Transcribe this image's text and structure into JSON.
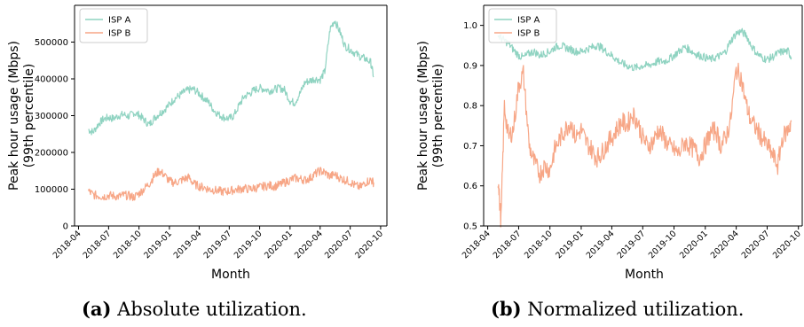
{
  "colors": {
    "isp_a": "#8fd3c1",
    "isp_b": "#f7a686",
    "axis": "#000000"
  },
  "chart_data": [
    {
      "type": "line",
      "xlabel": "Month",
      "ylabel": "Peak hour usage (Mbps)",
      "ylabel2": "(99th percentile)",
      "caption_label": "(a)",
      "caption_text": "Absolute utilization.",
      "legend_position": "top-left",
      "grid": false,
      "xlim": [
        "2018-03-20",
        "2020-10-20"
      ],
      "ylim": [
        0,
        600000
      ],
      "x_ticks": [
        "2018-04",
        "2018-07",
        "2018-10",
        "2019-01",
        "2019-04",
        "2019-07",
        "2019-10",
        "2020-01",
        "2020-04",
        "2020-07",
        "2020-10"
      ],
      "y_ticks": [
        0,
        100000,
        200000,
        300000,
        400000,
        500000
      ],
      "y_tick_labels": [
        "0",
        "100000",
        "200000",
        "300000",
        "400000",
        "500000"
      ],
      "series": [
        {
          "name": "ISP A",
          "x": [
            "2018-05-01",
            "2018-05-15",
            "2018-06-01",
            "2018-06-15",
            "2018-07-01",
            "2018-07-15",
            "2018-08-01",
            "2018-08-15",
            "2018-09-01",
            "2018-09-15",
            "2018-10-01",
            "2018-10-15",
            "2018-11-01",
            "2018-11-15",
            "2018-12-01",
            "2018-12-15",
            "2019-01-01",
            "2019-01-15",
            "2019-02-01",
            "2019-02-15",
            "2019-03-01",
            "2019-03-15",
            "2019-04-01",
            "2019-04-15",
            "2019-05-01",
            "2019-05-15",
            "2019-06-01",
            "2019-06-15",
            "2019-07-01",
            "2019-07-15",
            "2019-08-01",
            "2019-08-15",
            "2019-09-01",
            "2019-09-15",
            "2019-10-01",
            "2019-10-15",
            "2019-11-01",
            "2019-11-15",
            "2019-12-01",
            "2019-12-15",
            "2020-01-01",
            "2020-01-15",
            "2020-02-01",
            "2020-02-15",
            "2020-03-01",
            "2020-03-15",
            "2020-04-01",
            "2020-04-15",
            "2020-05-01",
            "2020-05-15",
            "2020-06-01",
            "2020-06-15",
            "2020-07-01",
            "2020-07-15",
            "2020-08-01",
            "2020-08-15",
            "2020-09-01",
            "2020-09-10"
          ],
          "values": [
            262000,
            255000,
            278000,
            290000,
            295000,
            292000,
            300000,
            303000,
            298000,
            308000,
            302000,
            290000,
            275000,
            292000,
            305000,
            315000,
            330000,
            345000,
            355000,
            365000,
            370000,
            372000,
            360000,
            348000,
            335000,
            315000,
            302000,
            295000,
            292000,
            300000,
            330000,
            352000,
            360000,
            370000,
            375000,
            372000,
            368000,
            372000,
            375000,
            370000,
            340000,
            335000,
            362000,
            390000,
            395000,
            400000,
            398000,
            420000,
            535000,
            560000,
            525000,
            490000,
            480000,
            470000,
            460000,
            455000,
            445000,
            405000
          ]
        },
        {
          "name": "ISP B",
          "x": [
            "2018-05-01",
            "2018-05-15",
            "2018-06-01",
            "2018-06-15",
            "2018-07-01",
            "2018-07-15",
            "2018-08-01",
            "2018-08-15",
            "2018-09-01",
            "2018-09-15",
            "2018-10-01",
            "2018-10-15",
            "2018-11-01",
            "2018-11-15",
            "2018-12-01",
            "2018-12-15",
            "2019-01-01",
            "2019-01-15",
            "2019-02-01",
            "2019-02-15",
            "2019-03-01",
            "2019-03-15",
            "2019-04-01",
            "2019-04-15",
            "2019-05-01",
            "2019-05-15",
            "2019-06-01",
            "2019-06-15",
            "2019-07-01",
            "2019-07-15",
            "2019-08-01",
            "2019-08-15",
            "2019-09-01",
            "2019-09-15",
            "2019-10-01",
            "2019-10-15",
            "2019-11-01",
            "2019-11-15",
            "2019-12-01",
            "2019-12-15",
            "2020-01-01",
            "2020-01-15",
            "2020-02-01",
            "2020-02-15",
            "2020-03-01",
            "2020-03-15",
            "2020-04-01",
            "2020-04-15",
            "2020-05-01",
            "2020-05-15",
            "2020-06-01",
            "2020-06-15",
            "2020-07-01",
            "2020-07-15",
            "2020-08-01",
            "2020-08-15",
            "2020-09-01",
            "2020-09-10"
          ],
          "values": [
            95000,
            85000,
            82000,
            80000,
            83000,
            82000,
            80000,
            84000,
            82000,
            78000,
            88000,
            100000,
            115000,
            135000,
            150000,
            140000,
            122000,
            118000,
            122000,
            128000,
            132000,
            115000,
            108000,
            105000,
            100000,
            98000,
            95000,
            93000,
            95000,
            98000,
            100000,
            102000,
            100000,
            103000,
            105000,
            108000,
            110000,
            108000,
            112000,
            118000,
            125000,
            130000,
            128000,
            125000,
            130000,
            140000,
            150000,
            145000,
            135000,
            140000,
            130000,
            125000,
            120000,
            110000,
            105000,
            118000,
            125000,
            118000
          ]
        }
      ]
    },
    {
      "type": "line",
      "xlabel": "Month",
      "ylabel": "Peak hour usage (Mbps)",
      "ylabel2": "(99th percentile)",
      "caption_label": "(b)",
      "caption_text": "Normalized utilization.",
      "legend_position": "top-left",
      "grid": false,
      "xlim": [
        "2018-03-20",
        "2020-10-20"
      ],
      "ylim": [
        0.5,
        1.05
      ],
      "x_ticks": [
        "2018-04",
        "2018-07",
        "2018-10",
        "2019-01",
        "2019-04",
        "2019-07",
        "2019-10",
        "2020-01",
        "2020-04",
        "2020-07",
        "2020-10"
      ],
      "y_ticks": [
        0.5,
        0.6,
        0.7,
        0.8,
        0.9,
        1.0
      ],
      "y_tick_labels": [
        "0.5",
        "0.6",
        "0.7",
        "0.8",
        "0.9",
        "1.0"
      ],
      "series": [
        {
          "name": "ISP A",
          "x": [
            "2018-05-01",
            "2018-05-15",
            "2018-06-01",
            "2018-06-15",
            "2018-07-01",
            "2018-07-15",
            "2018-08-01",
            "2018-08-15",
            "2018-09-01",
            "2018-09-15",
            "2018-10-01",
            "2018-10-15",
            "2018-11-01",
            "2018-11-15",
            "2018-12-01",
            "2018-12-15",
            "2019-01-01",
            "2019-01-15",
            "2019-02-01",
            "2019-02-15",
            "2019-03-01",
            "2019-03-15",
            "2019-04-01",
            "2019-04-15",
            "2019-05-01",
            "2019-05-15",
            "2019-06-01",
            "2019-06-15",
            "2019-07-01",
            "2019-07-15",
            "2019-08-01",
            "2019-08-15",
            "2019-09-01",
            "2019-09-15",
            "2019-10-01",
            "2019-10-15",
            "2019-11-01",
            "2019-11-15",
            "2019-12-01",
            "2019-12-15",
            "2020-01-01",
            "2020-01-15",
            "2020-02-01",
            "2020-02-15",
            "2020-03-01",
            "2020-03-15",
            "2020-04-01",
            "2020-04-15",
            "2020-05-01",
            "2020-05-15",
            "2020-06-01",
            "2020-06-15",
            "2020-07-01",
            "2020-07-15",
            "2020-08-01",
            "2020-08-15",
            "2020-09-01",
            "2020-09-10"
          ],
          "values": [
            0.975,
            0.965,
            0.955,
            0.94,
            0.925,
            0.92,
            0.93,
            0.935,
            0.925,
            0.93,
            0.935,
            0.945,
            0.95,
            0.945,
            0.94,
            0.935,
            0.935,
            0.94,
            0.945,
            0.95,
            0.945,
            0.935,
            0.925,
            0.915,
            0.905,
            0.9,
            0.895,
            0.895,
            0.9,
            0.9,
            0.905,
            0.91,
            0.91,
            0.915,
            0.925,
            0.935,
            0.945,
            0.94,
            0.93,
            0.925,
            0.92,
            0.915,
            0.92,
            0.925,
            0.935,
            0.96,
            0.98,
            0.985,
            0.975,
            0.95,
            0.93,
            0.92,
            0.915,
            0.92,
            0.93,
            0.935,
            0.935,
            0.92
          ]
        },
        {
          "name": "ISP B",
          "x": [
            "2018-05-01",
            "2018-05-10",
            "2018-05-20",
            "2018-06-01",
            "2018-06-15",
            "2018-07-01",
            "2018-07-15",
            "2018-08-01",
            "2018-08-15",
            "2018-09-01",
            "2018-09-15",
            "2018-10-01",
            "2018-10-15",
            "2018-11-01",
            "2018-11-15",
            "2018-12-01",
            "2018-12-15",
            "2019-01-01",
            "2019-01-15",
            "2019-02-01",
            "2019-02-15",
            "2019-03-01",
            "2019-03-15",
            "2019-04-01",
            "2019-04-15",
            "2019-05-01",
            "2019-05-15",
            "2019-06-01",
            "2019-06-15",
            "2019-07-01",
            "2019-07-15",
            "2019-08-01",
            "2019-08-15",
            "2019-09-01",
            "2019-09-15",
            "2019-10-01",
            "2019-10-15",
            "2019-11-01",
            "2019-11-15",
            "2019-12-01",
            "2019-12-15",
            "2020-01-01",
            "2020-01-15",
            "2020-02-01",
            "2020-02-15",
            "2020-03-01",
            "2020-03-15",
            "2020-04-01",
            "2020-04-15",
            "2020-05-01",
            "2020-05-15",
            "2020-06-01",
            "2020-06-15",
            "2020-07-01",
            "2020-07-15",
            "2020-08-01",
            "2020-08-15",
            "2020-09-01",
            "2020-09-10"
          ],
          "values": [
            0.62,
            0.51,
            0.8,
            0.72,
            0.74,
            0.85,
            0.88,
            0.7,
            0.66,
            0.63,
            0.65,
            0.64,
            0.69,
            0.72,
            0.74,
            0.76,
            0.72,
            0.74,
            0.71,
            0.69,
            0.67,
            0.68,
            0.7,
            0.72,
            0.74,
            0.76,
            0.75,
            0.78,
            0.76,
            0.72,
            0.7,
            0.71,
            0.74,
            0.72,
            0.7,
            0.69,
            0.68,
            0.71,
            0.7,
            0.69,
            0.67,
            0.7,
            0.73,
            0.74,
            0.7,
            0.72,
            0.76,
            0.89,
            0.87,
            0.8,
            0.76,
            0.74,
            0.72,
            0.7,
            0.68,
            0.65,
            0.72,
            0.74,
            0.76
          ]
        }
      ]
    }
  ]
}
